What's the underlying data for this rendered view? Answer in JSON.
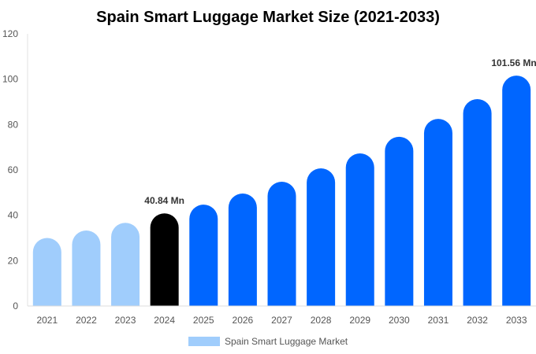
{
  "chart_data": {
    "type": "bar",
    "title": "Spain Smart Luggage Market Size (2021-2033)",
    "xlabel": "",
    "ylabel": "",
    "ylim": [
      0,
      120
    ],
    "yticks": [
      0,
      20,
      40,
      60,
      80,
      100,
      120
    ],
    "grid": false,
    "legend_position": "bottom",
    "categories": [
      "2021",
      "2022",
      "2023",
      "2024",
      "2025",
      "2026",
      "2027",
      "2028",
      "2029",
      "2030",
      "2031",
      "2032",
      "2033"
    ],
    "series": [
      {
        "name": "Spain Smart Luggage Market",
        "values": [
          30.0,
          33.3,
          36.7,
          40.84,
          44.7,
          49.6,
          54.8,
          60.7,
          67.3,
          74.6,
          82.5,
          91.2,
          101.56
        ]
      }
    ],
    "bar_colors": [
      "#a0cdfc",
      "#a0cdfc",
      "#a0cdfc",
      "#000000",
      "#0066ff",
      "#0066ff",
      "#0066ff",
      "#0066ff",
      "#0066ff",
      "#0066ff",
      "#0066ff",
      "#0066ff",
      "#0066ff"
    ],
    "legend_color": "#a0cdfc",
    "data_labels": [
      {
        "category": "2024",
        "text": "40.84 Mn"
      },
      {
        "category": "2033",
        "text": "101.56 Mn"
      }
    ]
  }
}
